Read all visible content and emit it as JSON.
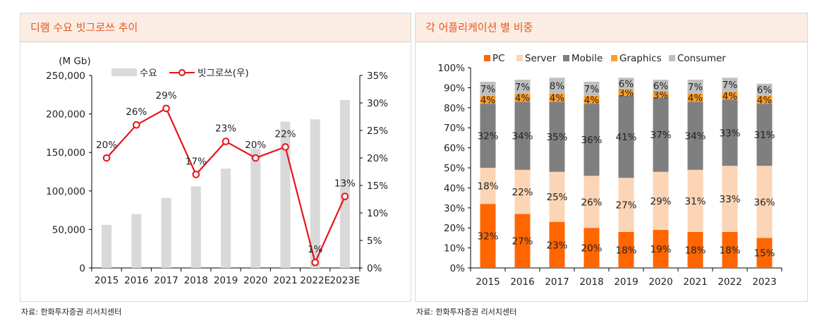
{
  "source_left": "자료: 한화투자증권 리서치센터",
  "source_right": "자료: 한화투자증권 리서치센터",
  "chart_data": [
    {
      "type": "bar+line",
      "title": "디램 수요 빗그로쓰 추이",
      "ylabel_left": "(M Gb)",
      "categories": [
        "2015",
        "2016",
        "2017",
        "2018",
        "2019",
        "2020",
        "2021",
        "2022E",
        "2023E"
      ],
      "y_left_ticks": [
        "0",
        "50,000",
        "100,000",
        "150,000",
        "200,000",
        "250,000"
      ],
      "y_right_ticks": [
        "0%",
        "5%",
        "10%",
        "15%",
        "20%",
        "25%",
        "30%",
        "35%"
      ],
      "ylim_left": [
        0,
        250000
      ],
      "ylim_right": [
        0,
        35
      ],
      "series": [
        {
          "name": "수요",
          "kind": "bar",
          "color": "#d9d9d9",
          "values": [
            56000,
            70000,
            91000,
            106000,
            129000,
            155000,
            190000,
            193000,
            218000
          ]
        },
        {
          "name": "빗그로쓰(우)",
          "kind": "line",
          "color": "#e8141b",
          "values": [
            20,
            26,
            29,
            17,
            23,
            20,
            22,
            1,
            13
          ],
          "labels": [
            "20%",
            "26%",
            "29%",
            "17%",
            "23%",
            "20%",
            "22%",
            "1%",
            "13%"
          ]
        }
      ],
      "legend": "top-center"
    },
    {
      "type": "stacked-bar",
      "title": "각 어플리케이션 별 비중",
      "categories": [
        "2015",
        "2016",
        "2017",
        "2018",
        "2019",
        "2020",
        "2021",
        "2022",
        "2023"
      ],
      "y_ticks": [
        "0%",
        "10%",
        "20%",
        "30%",
        "40%",
        "50%",
        "60%",
        "70%",
        "80%",
        "90%",
        "100%"
      ],
      "ylim": [
        0,
        100
      ],
      "series": [
        {
          "name": "PC",
          "color": "#ff6600",
          "values": [
            32,
            27,
            23,
            20,
            18,
            19,
            18,
            18,
            15
          ],
          "labels": [
            "32%",
            "27%",
            "23%",
            "20%",
            "18%",
            "19%",
            "18%",
            "18%",
            "15%"
          ]
        },
        {
          "name": "Server",
          "color": "#fbd5b5",
          "values": [
            18,
            22,
            25,
            26,
            27,
            29,
            31,
            33,
            36
          ],
          "labels": [
            "18%",
            "22%",
            "25%",
            "26%",
            "27%",
            "29%",
            "31%",
            "33%",
            "36%"
          ]
        },
        {
          "name": "Mobile",
          "color": "#7f7f7f",
          "values": [
            32,
            34,
            35,
            36,
            41,
            37,
            34,
            33,
            31
          ],
          "labels": [
            "32%",
            "34%",
            "35%",
            "36%",
            "41%",
            "37%",
            "34%",
            "33%",
            "31%"
          ]
        },
        {
          "name": "Graphics",
          "color": "#ff9d28",
          "values": [
            4,
            4,
            4,
            4,
            3,
            3,
            4,
            4,
            4
          ],
          "labels": [
            "4%",
            "4%",
            "4%",
            "4%",
            "3%",
            "3%",
            "4%",
            "4%",
            "4%"
          ]
        },
        {
          "name": "Consumer",
          "color": "#bfbfbf",
          "values": [
            7,
            7,
            8,
            7,
            6,
            6,
            7,
            7,
            6
          ],
          "labels": [
            "7%",
            "7%",
            "8%",
            "7%",
            "6%",
            "6%",
            "7%",
            "7%",
            "6%"
          ]
        }
      ],
      "legend": "top"
    }
  ]
}
